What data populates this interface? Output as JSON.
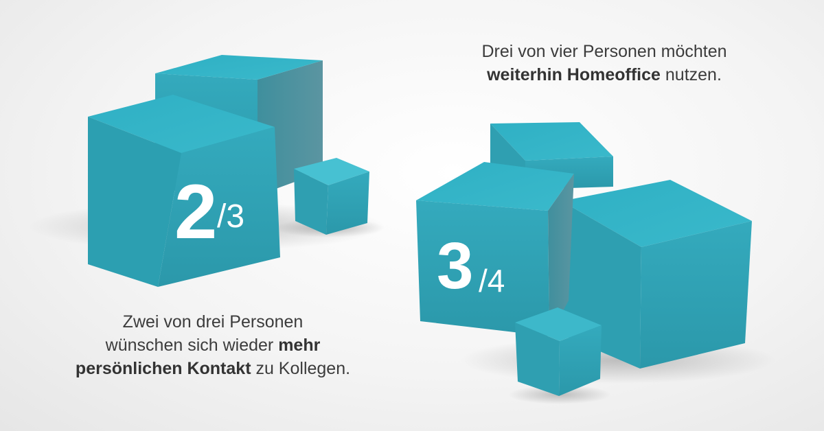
{
  "fractions": {
    "two_thirds": {
      "numerator": "2",
      "denominator": "/3"
    },
    "three_quarters": {
      "numerator": "3",
      "denominator": "/4"
    }
  },
  "captions": {
    "top": {
      "line1": "Drei von vier Personen möchten",
      "line2_bold": "weiterhin Homeoffice",
      "line2_rest": " nutzen."
    },
    "bottom": {
      "line1": "Zwei von drei Personen",
      "line2_prefix": "wünschen sich wieder ",
      "line2_bold": "mehr",
      "line3_bold": "persönlichen Kontakt",
      "line3_rest": " zu Kollegen."
    }
  },
  "colors": {
    "cube_top": "#35b5c8",
    "cube_front": "#2f9fb2",
    "cube_side": "#4a8c9a",
    "text": "#3c3c3c"
  }
}
